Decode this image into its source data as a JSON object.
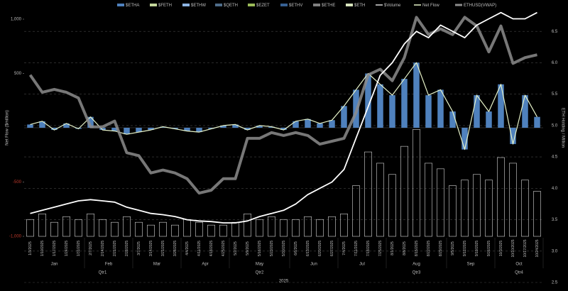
{
  "chart_data": {
    "type": "combo",
    "x": [
      "1/3/2025",
      "1/10/2025",
      "1/17/2025",
      "1/24/2025",
      "1/31/2025",
      "2/7/2025",
      "2/14/2025",
      "2/21/2025",
      "2/28/2025",
      "3/7/2025",
      "3/14/2025",
      "3/21/2025",
      "3/28/2025",
      "4/4/2025",
      "4/11/2025",
      "4/18/2025",
      "4/25/2025",
      "5/2/2025",
      "5/9/2025",
      "5/16/2025",
      "5/23/2025",
      "5/30/2025",
      "6/6/2025",
      "6/13/2025",
      "6/20/2025",
      "6/27/2025",
      "7/4/2025",
      "7/11/2025",
      "7/18/2025",
      "7/25/2025",
      "8/1/2025",
      "8/8/2025",
      "8/15/2025",
      "8/22/2025",
      "8/29/2025",
      "9/5/2025",
      "9/12/2025",
      "9/19/2025",
      "9/26/2025",
      "10/3/2025",
      "10/10/2025",
      "10/17/2025",
      "10/24/2025"
    ],
    "months": [
      "Jan",
      "Feb",
      "Mar",
      "Apr",
      "May",
      "Jun",
      "Jul",
      "Aug",
      "Sep",
      "Oct"
    ],
    "quarters": [
      "Qtr1",
      "Qtr2",
      "Qtr3",
      "Qtr4"
    ],
    "year": "2025",
    "y_label": "Net Flow ($million)",
    "y2_label": "ETH Holding / Million",
    "legend_items": [
      {
        "name": "$ETHA",
        "color": "#4f81bd"
      },
      {
        "name": "$FETH",
        "color": "#c3d69b"
      },
      {
        "name": "$ETHW",
        "color": "#8db4e2"
      },
      {
        "name": "$QETH",
        "color": "#4f6d8a"
      },
      {
        "name": "$EZET",
        "color": "#9bbb59"
      },
      {
        "name": "$ETHV",
        "color": "#366092"
      },
      {
        "name": "$ETHE",
        "color": "#7f7f7f"
      },
      {
        "name": "$ETH",
        "color": "#d7e4bd"
      }
    ],
    "series": [
      {
        "name": "$Volume",
        "color": "#d9d9d9",
        "axis": "y4",
        "values": [
          300,
          400,
          250,
          350,
          300,
          400,
          300,
          250,
          350,
          250,
          200,
          250,
          200,
          300,
          250,
          200,
          200,
          250,
          400,
          300,
          350,
          300,
          300,
          350,
          300,
          350,
          400,
          900,
          1500,
          1300,
          1100,
          1600,
          1900,
          1300,
          1200,
          900,
          1000,
          1100,
          1000,
          1400,
          1300,
          1000,
          800
        ]
      },
      {
        "name": "Net Flow",
        "color": "#e6f2c8",
        "bar_color": "#4f81bd",
        "axis": "y",
        "values": [
          30,
          60,
          -20,
          40,
          -10,
          100,
          -20,
          -30,
          -60,
          -40,
          -20,
          10,
          -10,
          -30,
          -40,
          -10,
          20,
          30,
          -20,
          20,
          10,
          -20,
          60,
          80,
          40,
          70,
          200,
          350,
          500,
          400,
          300,
          450,
          600,
          300,
          350,
          150,
          -200,
          300,
          150,
          400,
          -150,
          300,
          100
        ]
      },
      {
        "name": "ETHUSD(VWAP)",
        "color": "#8c8c8c",
        "axis": "y3",
        "values": [
          3600,
          3300,
          3350,
          3300,
          3200,
          2700,
          2700,
          2800,
          2250,
          2200,
          1900,
          1950,
          1900,
          1800,
          1550,
          1600,
          1800,
          1800,
          2500,
          2500,
          2600,
          2550,
          2600,
          2550,
          2400,
          2450,
          2500,
          2950,
          3600,
          3700,
          3500,
          3900,
          4600,
          4300,
          4400,
          4300,
          4600,
          4450,
          4000,
          4450,
          3800,
          3900,
          3950
        ]
      },
      {
        "color": "#ffffff",
        "axis": "y2",
        "values": [
          3.6,
          3.65,
          3.7,
          3.75,
          3.8,
          3.82,
          3.8,
          3.78,
          3.7,
          3.65,
          3.6,
          3.58,
          3.55,
          3.5,
          3.48,
          3.47,
          3.45,
          3.45,
          3.48,
          3.55,
          3.6,
          3.65,
          3.75,
          3.9,
          4.0,
          4.1,
          4.3,
          4.8,
          5.3,
          5.8,
          6.0,
          6.3,
          6.5,
          6.4,
          6.6,
          6.5,
          6.4,
          6.6,
          6.7,
          6.8,
          6.7,
          6.7,
          6.8
        ]
      }
    ],
    "ylim": [
      -1000,
      1000
    ],
    "yticks": [
      {
        "value": -1000,
        "label": "-1,000"
      },
      -500,
      500,
      {
        "value": 1000,
        "label": "1,000"
      }
    ],
    "negative_tick_color": "#c0392b",
    "y2lim": [
      2.5,
      7.0
    ],
    "y2ticks": [
      2.5,
      {
        "value": 3,
        "label": "3.0"
      },
      3.5,
      {
        "value": 4,
        "label": "4.0"
      },
      4.5,
      {
        "value": 5,
        "label": "5.0"
      },
      5.5,
      {
        "value": 6,
        "label": "6.0"
      },
      6.5
    ],
    "y3lim": [
      0,
      4900
    ],
    "y4lim": [
      0,
      4200
    ],
    "grid": true
  }
}
